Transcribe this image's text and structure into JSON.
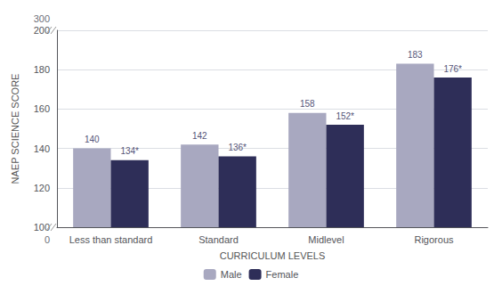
{
  "chart_data": {
    "type": "bar",
    "categories": [
      "Less than standard",
      "Standard",
      "Midlevel",
      "Rigorous"
    ],
    "series": [
      {
        "name": "Male",
        "color": "#a8a8c0",
        "values": [
          140,
          142,
          158,
          183
        ]
      },
      {
        "name": "Female",
        "color": "#2e2e58",
        "values": [
          134,
          136,
          152,
          176
        ],
        "value_labels": [
          "134*",
          "136*",
          "152*",
          "176*"
        ]
      }
    ],
    "xlabel": "CURRICULUM LEVELS",
    "ylabel": "NAEP SCIENCE SCORE",
    "ylim": [
      100,
      200
    ],
    "yticks": [
      100,
      120,
      140,
      160,
      180,
      200
    ],
    "grid": true,
    "legend": "bottom",
    "data_labels": true,
    "annotations": [
      {
        "text": "0",
        "y": 100
      },
      {
        "text": "300",
        "y": 200
      }
    ]
  }
}
